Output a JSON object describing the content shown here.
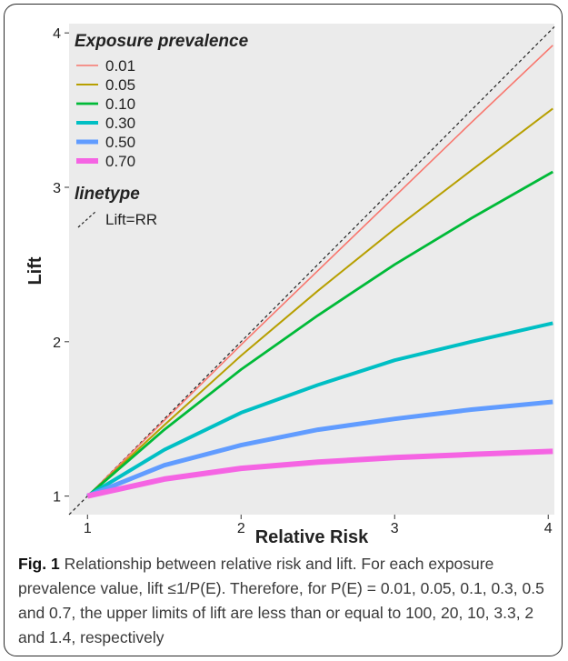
{
  "chart_data": {
    "type": "line",
    "xlabel": "Relative Risk",
    "ylabel": "Lift",
    "xlim": [
      0.88,
      4.04
    ],
    "ylim": [
      0.88,
      4.06
    ],
    "xticks": [
      "1",
      "2",
      "3",
      "4"
    ],
    "yticks": [
      "1",
      "2",
      "3",
      "4"
    ],
    "grid": false,
    "background": "#ebebeb",
    "legend_placement": "top-left",
    "legend_title": "Exposure prevalence",
    "legend2_title": "linetype",
    "reference_line": {
      "label": "Lift=RR",
      "style": "dashed",
      "color": "#222222"
    },
    "series": [
      {
        "name": "0.01",
        "color": "#f8766d",
        "x": [
          1,
          1.5,
          2,
          2.5,
          3,
          3.5,
          4.03
        ],
        "y": [
          1,
          1.49,
          1.98,
          2.46,
          2.94,
          3.42,
          3.92
        ]
      },
      {
        "name": "0.05",
        "color": "#b79f00",
        "x": [
          1,
          1.5,
          2,
          2.5,
          3,
          3.5,
          4.03
        ],
        "y": [
          1,
          1.46,
          1.91,
          2.33,
          2.73,
          3.11,
          3.51
        ]
      },
      {
        "name": "0.10",
        "color": "#00ba38",
        "x": [
          1,
          1.5,
          2,
          2.5,
          3,
          3.5,
          4.03
        ],
        "y": [
          1,
          1.43,
          1.82,
          2.17,
          2.5,
          2.8,
          3.1
        ]
      },
      {
        "name": "0.30",
        "color": "#00bfc4",
        "x": [
          1,
          1.5,
          2,
          2.5,
          3,
          3.5,
          4.03
        ],
        "y": [
          1,
          1.3,
          1.54,
          1.72,
          1.88,
          2.0,
          2.12
        ]
      },
      {
        "name": "0.50",
        "color": "#619cff",
        "x": [
          1,
          1.5,
          2,
          2.5,
          3,
          3.5,
          4.03
        ],
        "y": [
          1,
          1.2,
          1.33,
          1.43,
          1.5,
          1.56,
          1.61
        ]
      },
      {
        "name": "0.70",
        "color": "#f564e3",
        "x": [
          1,
          1.5,
          2,
          2.5,
          3,
          3.5,
          4.03
        ],
        "y": [
          1,
          1.11,
          1.18,
          1.22,
          1.25,
          1.27,
          1.29
        ]
      }
    ]
  },
  "caption": {
    "label": "Fig. 1",
    "text": "Relationship between relative risk and lift. For each exposure prevalence value, lift ≤1/P(E). Therefore, for P(E) = 0.01, 0.05, 0.1, 0.3, 0.5 and 0.7, the upper limits of lift are less than or equal to 100, 20, 10, 3.3, 2 and 1.4, respectively"
  }
}
